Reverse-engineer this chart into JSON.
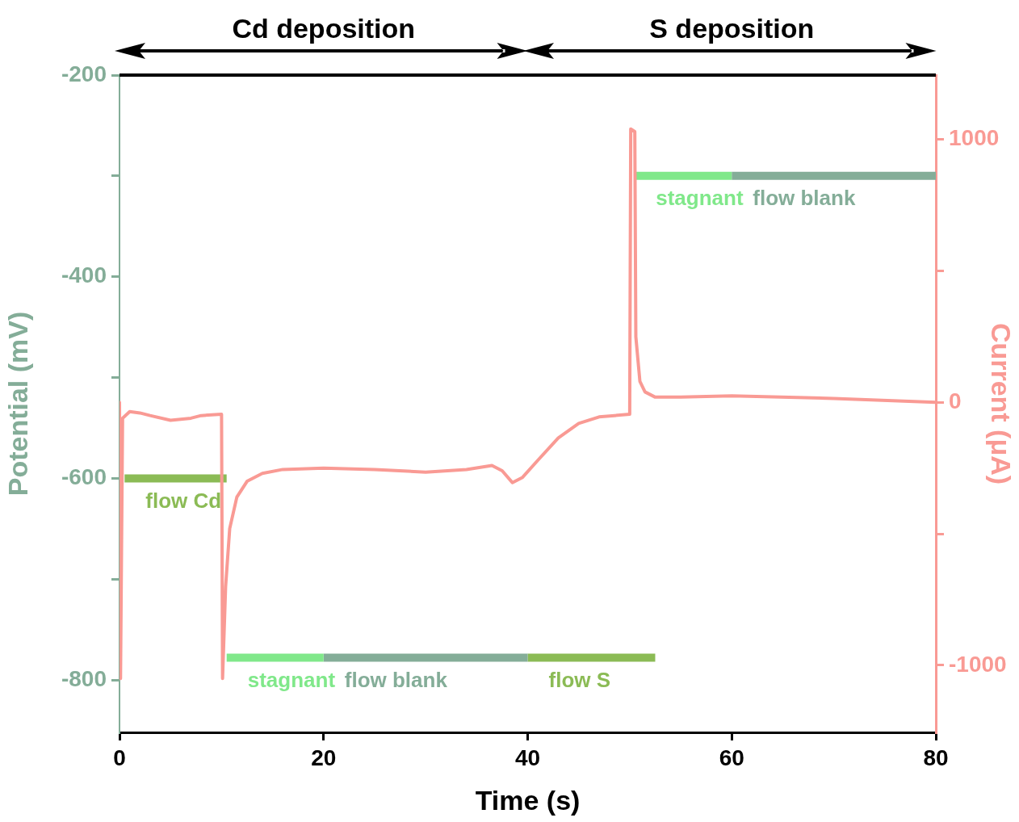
{
  "chart_data": {
    "type": "line",
    "xlabel": "Time (s)",
    "ylabel": "Potential (mV)",
    "y2label": "Current (μA)",
    "xlim": [
      0,
      80
    ],
    "xticks": [
      0,
      20,
      40,
      60,
      80
    ],
    "ylim": [
      -852,
      -200
    ],
    "yticks": [
      -200,
      {
        "value": -300,
        "label": null
      },
      -400,
      {
        "value": -500,
        "label": null
      },
      -600,
      {
        "value": -700,
        "label": null
      },
      -800
    ],
    "y2lim": [
      -1255,
      1245
    ],
    "y2ticks": [
      -1000,
      {
        "value": -500,
        "label": null
      },
      0,
      {
        "value": 500,
        "label": null
      },
      1000
    ],
    "marker": "none",
    "legend": false,
    "grid": false,
    "annotations": [
      "Cd deposition",
      "S deposition"
    ],
    "series": [
      {
        "name": "flow Cd",
        "color": "#8bbb55",
        "x": [
          0.5,
          10.5
        ],
        "values": [
          -600,
          -600
        ]
      },
      {
        "name": "stagnant",
        "color": "#80e88a",
        "x": [
          10.5,
          20
        ],
        "values": [
          -778,
          -778
        ]
      },
      {
        "name": "flow blank",
        "color": "#84ad98",
        "x": [
          20,
          40
        ],
        "values": [
          -778,
          -778
        ]
      },
      {
        "name": "flow S",
        "color": "#8bbb55",
        "x": [
          40,
          52.5
        ],
        "values": [
          -778,
          -778
        ]
      },
      {
        "name": "stagnant",
        "color": "#80e88a",
        "x": [
          50.5,
          60
        ],
        "values": [
          -300,
          -300
        ]
      },
      {
        "name": "flow blank",
        "color": "#84ad98",
        "x": [
          60,
          80
        ],
        "values": [
          -300,
          -300
        ]
      },
      {
        "axis": "y2",
        "color": "#f99a94",
        "x": [
          0,
          0.1,
          0.3,
          1,
          2,
          3,
          5,
          7,
          8,
          10,
          10.1,
          10.4,
          10.8,
          11.5,
          12.5,
          14,
          16,
          20,
          25,
          30,
          34,
          36.5,
          37.5,
          38.5,
          39.5,
          41,
          43,
          45,
          47,
          50,
          50.1,
          50.5,
          50.6,
          51,
          51.5,
          52.5,
          55,
          60,
          70,
          80
        ],
        "values": [
          0,
          -1050,
          -60,
          -35,
          -40,
          -50,
          -68,
          -60,
          -50,
          -45,
          -1050,
          -700,
          -480,
          -360,
          -300,
          -270,
          -255,
          -250,
          -255,
          -265,
          -255,
          -240,
          -260,
          -305,
          -285,
          -220,
          -135,
          -80,
          -55,
          -45,
          1040,
          1030,
          250,
          80,
          40,
          20,
          20,
          25,
          15,
          0
        ]
      }
    ]
  }
}
